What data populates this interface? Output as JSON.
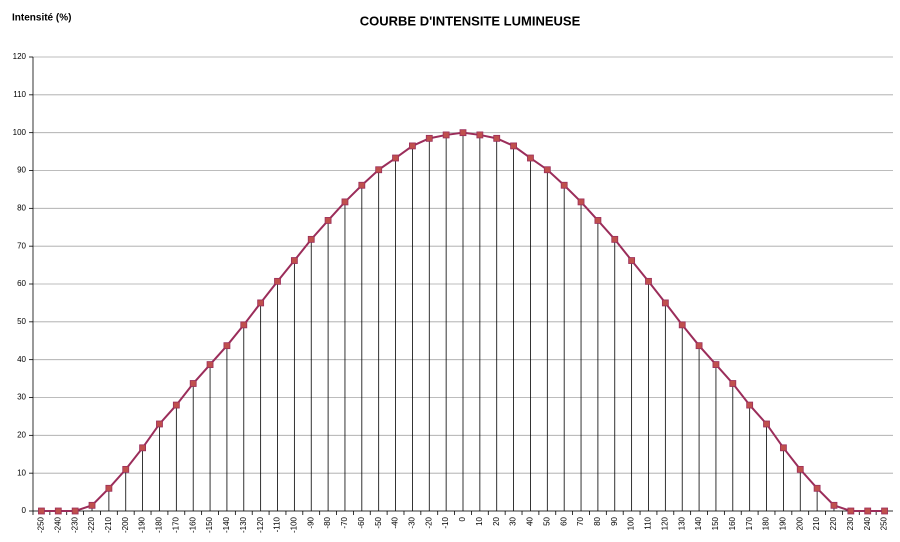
{
  "chart_data": {
    "type": "line",
    "title": "COURBE D'INTENSITE LUMINEUSE",
    "y_label": "Intensité (%)",
    "categories": [
      -250,
      -240,
      -230,
      -220,
      -210,
      -200,
      -190,
      -180,
      -170,
      -160,
      -150,
      -140,
      -130,
      -120,
      -110,
      -100,
      -90,
      -80,
      -70,
      -60,
      -50,
      -40,
      -30,
      -20,
      -10,
      0,
      10,
      20,
      30,
      40,
      50,
      60,
      70,
      80,
      90,
      100,
      110,
      120,
      130,
      140,
      150,
      160,
      170,
      180,
      190,
      200,
      210,
      220,
      230,
      240,
      250
    ],
    "series": [
      {
        "name": "Intensité",
        "color": "#9b2d5a",
        "marker_color": "#c0504d",
        "values": [
          0,
          0,
          0,
          1.5,
          6,
          11,
          16.7,
          23,
          28,
          33.7,
          38.7,
          43.7,
          49.2,
          55,
          60.7,
          66.2,
          71.8,
          76.8,
          81.7,
          86.1,
          90.2,
          93.3,
          96.5,
          98.5,
          99.4,
          100,
          99.4,
          98.5,
          96.5,
          93.3,
          90.2,
          86.1,
          81.7,
          76.8,
          71.8,
          66.2,
          60.7,
          55,
          49.2,
          43.7,
          38.7,
          33.7,
          28,
          23,
          16.7,
          11,
          6,
          1.5,
          0,
          0,
          0
        ]
      }
    ],
    "ylim": [
      0,
      120
    ],
    "yticks": [
      0,
      10,
      20,
      30,
      40,
      50,
      60,
      70,
      80,
      90,
      100,
      110,
      120
    ],
    "grid": true,
    "drop_lines": true
  }
}
